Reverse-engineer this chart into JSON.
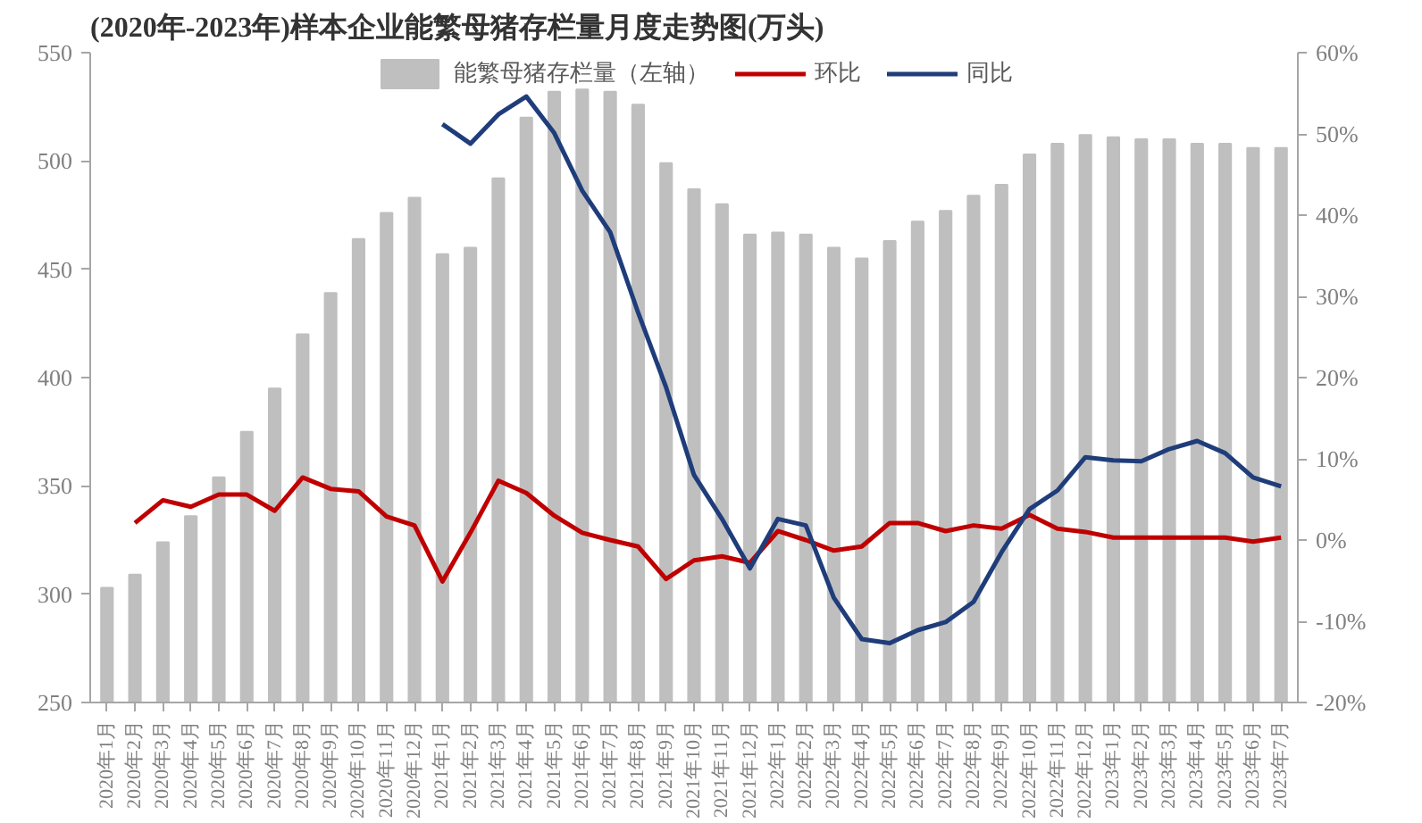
{
  "chart_data": {
    "type": "bar",
    "title": "(2020年-2023年)样本企业能繁母猪存栏量月度走势图(万头)",
    "categories": [
      "2020年1月",
      "2020年2月",
      "2020年3月",
      "2020年4月",
      "2020年5月",
      "2020年6月",
      "2020年7月",
      "2020年8月",
      "2020年9月",
      "2020年10月",
      "2020年11月",
      "2020年12月",
      "2021年1月",
      "2021年2月",
      "2021年3月",
      "2021年4月",
      "2021年5月",
      "2021年6月",
      "2021年7月",
      "2021年8月",
      "2021年9月",
      "2021年10月",
      "2021年11月",
      "2021年12月",
      "2022年1月",
      "2022年2月",
      "2022年3月",
      "2022年4月",
      "2022年5月",
      "2022年6月",
      "2022年7月",
      "2022年8月",
      "2022年9月",
      "2022年10月",
      "2022年11月",
      "2022年12月",
      "2023年1月",
      "2023年2月",
      "2023年3月",
      "2023年4月",
      "2023年5月",
      "2023年6月",
      "2023年7月"
    ],
    "series": [
      {
        "name": "能繁母猪存栏量（左轴）",
        "color": "#bfbfbf",
        "values": [
          303,
          309,
          324,
          336,
          354,
          375,
          395,
          420,
          439,
          464,
          476,
          483,
          457,
          460,
          492,
          520,
          532,
          533,
          532,
          526,
          499,
          487,
          480,
          466,
          467,
          466,
          460,
          455,
          463,
          472,
          477,
          484,
          489,
          503,
          508,
          512,
          511,
          510,
          510,
          508,
          508,
          506,
          506
        ]
      },
      {
        "name": "环比",
        "type": "line",
        "axis": "y2",
        "color": "#c00000",
        "values": [
          null,
          2.1,
          4.9,
          4.1,
          5.6,
          5.6,
          3.6,
          7.7,
          6.3,
          6.0,
          2.9,
          1.8,
          -5.1,
          0.9,
          7.3,
          5.8,
          3.0,
          0.9,
          0.0,
          -0.8,
          -4.8,
          -2.5,
          -2.0,
          -2.8,
          1.1,
          0.0,
          -1.3,
          -0.8,
          2.1,
          2.1,
          1.1,
          1.8,
          1.4,
          3.1,
          1.4,
          1.0,
          0.3,
          0.3,
          0.3,
          0.3,
          0.3,
          -0.2,
          0.3
        ]
      },
      {
        "name": "同比",
        "type": "line",
        "axis": "y2",
        "color": "#1f3d7a",
        "values": [
          null,
          null,
          null,
          null,
          null,
          null,
          null,
          null,
          null,
          null,
          null,
          null,
          51.2,
          48.8,
          52.4,
          54.6,
          50.1,
          43.0,
          37.9,
          28.0,
          18.8,
          8.0,
          2.6,
          -3.5,
          2.6,
          1.8,
          -7.1,
          -12.2,
          -12.7,
          -11.1,
          -10.1,
          -7.6,
          -1.5,
          3.8,
          6.1,
          10.2,
          9.8,
          9.7,
          11.2,
          12.2,
          10.7,
          7.7,
          6.6
        ]
      }
    ],
    "ylim": [
      250,
      550
    ],
    "yticks": [
      250,
      300,
      350,
      400,
      450,
      500,
      550
    ],
    "y2lim": [
      -20,
      60
    ],
    "y2ticks": [
      {
        "value": -20,
        "label": "-20%"
      },
      {
        "value": -10,
        "label": "-10%"
      },
      {
        "value": 0,
        "label": "0%"
      },
      {
        "value": 10,
        "label": "10%"
      },
      {
        "value": 20,
        "label": "20%"
      },
      {
        "value": 30,
        "label": "30%"
      },
      {
        "value": 40,
        "label": "40%"
      },
      {
        "value": 50,
        "label": "50%"
      },
      {
        "value": 60,
        "label": "60%"
      }
    ],
    "grid": false,
    "legend": "top",
    "line_style": "solid",
    "marker": "none"
  }
}
